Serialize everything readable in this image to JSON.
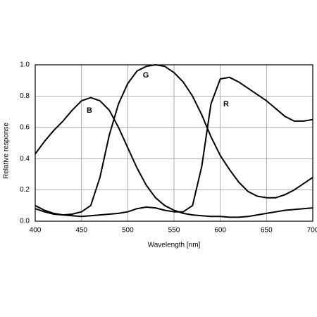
{
  "chart_data": {
    "type": "line",
    "x_label": "Wavelength [nm]",
    "y_label": "Relative response",
    "x": [
      400,
      410,
      420,
      430,
      440,
      450,
      460,
      470,
      480,
      490,
      500,
      510,
      520,
      530,
      540,
      550,
      560,
      570,
      580,
      590,
      600,
      610,
      620,
      630,
      640,
      650,
      660,
      670,
      680,
      690,
      700
    ],
    "series": [
      {
        "name": "B",
        "color": "#000000",
        "values": [
          0.43,
          0.51,
          0.58,
          0.64,
          0.71,
          0.77,
          0.79,
          0.77,
          0.71,
          0.6,
          0.47,
          0.34,
          0.23,
          0.15,
          0.1,
          0.07,
          0.05,
          0.04,
          0.035,
          0.03,
          0.03,
          0.025,
          0.025,
          0.03,
          0.04,
          0.05,
          0.06,
          0.07,
          0.075,
          0.08,
          0.085
        ]
      },
      {
        "name": "G",
        "color": "#000000",
        "values": [
          0.1,
          0.07,
          0.05,
          0.04,
          0.045,
          0.06,
          0.1,
          0.28,
          0.55,
          0.75,
          0.88,
          0.96,
          0.99,
          1.0,
          0.99,
          0.95,
          0.89,
          0.8,
          0.68,
          0.54,
          0.42,
          0.33,
          0.25,
          0.19,
          0.16,
          0.15,
          0.15,
          0.17,
          0.2,
          0.24,
          0.28
        ]
      },
      {
        "name": "R",
        "color": "#000000",
        "values": [
          0.08,
          0.06,
          0.045,
          0.04,
          0.035,
          0.03,
          0.035,
          0.04,
          0.045,
          0.05,
          0.06,
          0.08,
          0.09,
          0.085,
          0.07,
          0.06,
          0.06,
          0.1,
          0.35,
          0.75,
          0.91,
          0.92,
          0.89,
          0.85,
          0.81,
          0.77,
          0.72,
          0.67,
          0.64,
          0.64,
          0.65
        ]
      }
    ],
    "xlim": [
      400,
      700
    ],
    "xticks": [
      400,
      450,
      500,
      550,
      600,
      650,
      700
    ],
    "ylim": [
      0,
      1
    ],
    "yticks": [
      {
        "value": 0,
        "label": "0.0"
      },
      {
        "value": 0.2,
        "label": "0.2"
      },
      {
        "value": 0.4,
        "label": "0.4"
      },
      {
        "value": 0.6,
        "label": "0.6"
      },
      {
        "value": 0.8,
        "label": "0.8"
      },
      {
        "value": 1,
        "label": "1.0"
      }
    ],
    "grid": true
  }
}
